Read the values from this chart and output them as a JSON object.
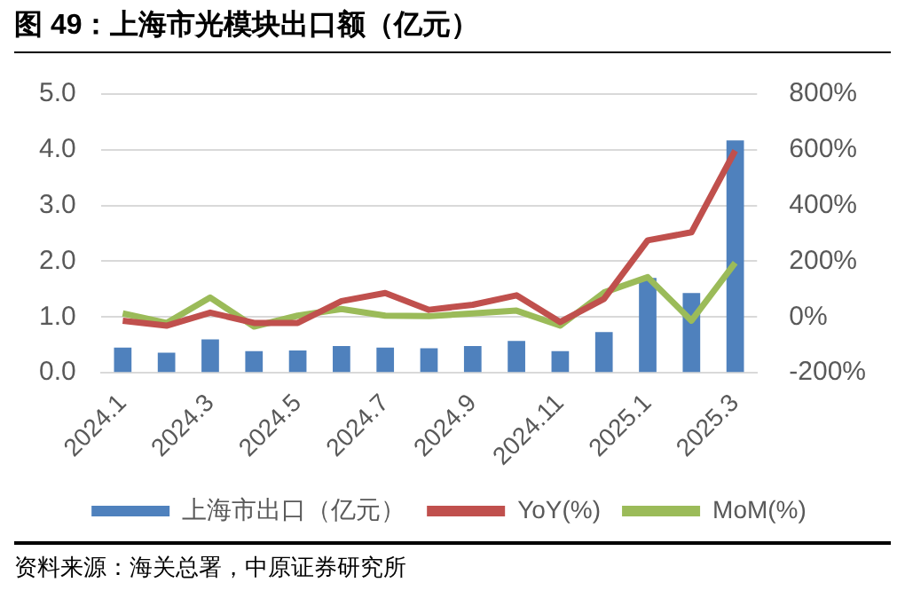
{
  "chart_data": {
    "type": "bar",
    "title": "图 49：上海市光模块出口额（亿元）",
    "categories": [
      "2024.1",
      null,
      "2024.3",
      null,
      "2024.5",
      null,
      "2024.7",
      null,
      "2024.9",
      null,
      "2024.11",
      null,
      "2025.1",
      null,
      "2025.3"
    ],
    "series": [
      {
        "name": "上海市出口（亿元）",
        "color": "#4f81bd",
        "values": [
          0.45,
          0.36,
          0.6,
          0.39,
          0.4,
          0.48,
          0.45,
          0.44,
          0.48,
          0.57,
          0.39,
          0.73,
          1.7,
          1.43,
          4.17
        ]
      },
      {
        "name": "YoY(%)",
        "type": "line",
        "axis": "y2",
        "color": "#c0504d",
        "values": [
          -13,
          -31,
          16,
          -21,
          -21,
          57,
          86,
          26,
          44,
          78,
          -18,
          65,
          275,
          304,
          597
        ]
      },
      {
        "name": "MoM(%)",
        "type": "line",
        "axis": "y2",
        "color": "#9bbb59",
        "values": [
          13,
          -21,
          70,
          -34,
          5,
          29,
          5,
          3,
          13,
          23,
          -31,
          88,
          143,
          -13,
          195
        ]
      }
    ],
    "ylim": [
      0,
      5
    ],
    "yticks": [
      {
        "value": 0,
        "label": "0.0"
      },
      {
        "value": 1,
        "label": "1.0"
      },
      {
        "value": 2,
        "label": "2.0"
      },
      {
        "value": 3,
        "label": "3.0"
      },
      {
        "value": 4,
        "label": "4.0"
      },
      {
        "value": 5,
        "label": "5.0"
      }
    ],
    "y2lim": [
      -200,
      800
    ],
    "y2ticks": [
      {
        "value": -200,
        "label": "-200%"
      },
      {
        "value": 0,
        "label": "0%"
      },
      {
        "value": 200,
        "label": "200%"
      },
      {
        "value": 400,
        "label": "400%"
      },
      {
        "value": 600,
        "label": "600%"
      },
      {
        "value": 800,
        "label": "800%"
      }
    ],
    "grid": "y",
    "legend": "bottom",
    "marker": "none",
    "annotations": [
      "资料来源：海关总署，中原证券研究所"
    ]
  }
}
